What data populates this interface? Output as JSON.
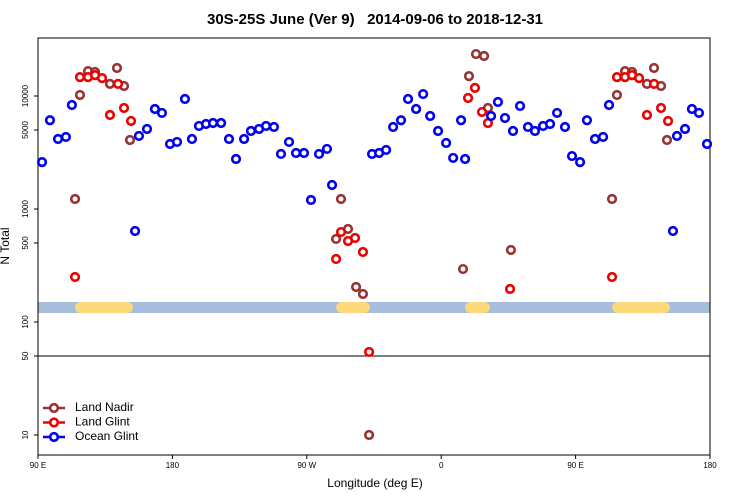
{
  "chart_data": {
    "type": "scatter",
    "title": "30S-25S June (Ver 9)   2014-09-06 to 2018-12-31",
    "x_label": "Longitude (deg E)",
    "y_label": "N Total",
    "xlim": [
      90,
      540
    ],
    "xticks": [
      {
        "value": 90,
        "label": "90 E"
      },
      180,
      {
        "value": 270,
        "label": "90 W"
      },
      {
        "value": 360,
        "label": "0"
      },
      {
        "value": 450,
        "label": "90 E"
      },
      {
        "value": 540,
        "label": "180"
      }
    ],
    "ylim": [
      6.65,
      32600
    ],
    "yticks": [
      10,
      50,
      100,
      500,
      1000,
      5000,
      10000
    ],
    "ylog": true,
    "reference_line": 50,
    "legend": "bottom-left",
    "series": [
      {
        "name": "Land Nadir",
        "color": "#993333",
        "x": [
          114.8,
          118.1,
          123.5,
          128.2,
          138.2,
          142.9,
          147.6,
          151.6,
          289.6,
          292.9,
          297.6,
          303.0,
          307.6,
          311.7,
          374.6,
          378.6,
          383.3,
          388.7,
          391.3,
          406.7,
          474.4,
          477.7,
          483.1,
          487.8,
          497.8,
          502.5,
          507.2,
          511.2
        ],
        "values": [
          1225,
          10200,
          16600,
          16300,
          12800,
          17700,
          12250,
          4080,
          543,
          1225,
          665,
          204,
          177,
          10,
          294,
          15000,
          23500,
          22600,
          7830,
          434,
          1225,
          10200,
          16600,
          16300,
          12800,
          17700,
          12250,
          4080
        ]
      },
      {
        "name": "Land Glint",
        "color": "#ee0000",
        "x": [
          114.8,
          118.1,
          123.5,
          128.2,
          132.9,
          138.2,
          143.6,
          147.6,
          152.3,
          289.6,
          292.9,
          297.6,
          302.3,
          307.6,
          311.7,
          378.0,
          382.6,
          387.3,
          391.3,
          406.1,
          474.4,
          477.7,
          483.1,
          487.8,
          492.5,
          497.8,
          502.5,
          507.2,
          511.9
        ],
        "values": [
          250,
          14700,
          14700,
          15300,
          14400,
          6790,
          12800,
          7830,
          6010,
          361,
          625,
          521,
          554,
          416,
          54.3,
          9600,
          11800,
          7210,
          5770,
          196,
          250,
          14700,
          14700,
          15300,
          14400,
          6790,
          12800,
          7830,
          6010
        ]
      },
      {
        "name": "Ocean Glint",
        "color": "#0000ee",
        "x": [
          92.7,
          98.0,
          103.4,
          108.7,
          112.7,
          155.0,
          157.6,
          163.0,
          168.3,
          173.0,
          178.4,
          183.1,
          188.4,
          193.1,
          197.8,
          202.5,
          207.2,
          212.6,
          217.9,
          222.6,
          228.0,
          232.6,
          238.0,
          242.7,
          248.0,
          252.7,
          258.1,
          262.8,
          268.1,
          272.8,
          278.2,
          283.5,
          286.9,
          313.7,
          318.4,
          323.1,
          327.8,
          333.1,
          337.8,
          343.2,
          347.9,
          352.6,
          357.9,
          363.3,
          368.0,
          373.3,
          376.0,
          393.4,
          398.0,
          402.7,
          408.1,
          412.8,
          418.1,
          422.8,
          428.2,
          432.9,
          437.6,
          442.9,
          447.6,
          453.0,
          457.6,
          463.0,
          468.4,
          472.4,
          515.2,
          517.9,
          523.3,
          527.9,
          532.6,
          538.0
        ],
        "values": [
          2600,
          6100,
          4160,
          4340,
          8320,
          639,
          4430,
          5100,
          7670,
          7080,
          3760,
          3920,
          9400,
          4160,
          5430,
          5650,
          5770,
          5770,
          4160,
          2770,
          4160,
          4900,
          5100,
          5430,
          5320,
          3070,
          3920,
          3130,
          3130,
          1202,
          3070,
          3400,
          1630,
          3070,
          3130,
          3330,
          5320,
          6100,
          9400,
          7670,
          10400,
          6650,
          4900,
          3840,
          2830,
          6100,
          2770,
          6650,
          8850,
          6390,
          4900,
          8160,
          5320,
          4900,
          5430,
          5650,
          7080,
          5320,
          2940,
          2600,
          6100,
          4160,
          4340,
          8320,
          639,
          4430,
          5100,
          7670,
          7080,
          3760
        ]
      }
    ]
  }
}
